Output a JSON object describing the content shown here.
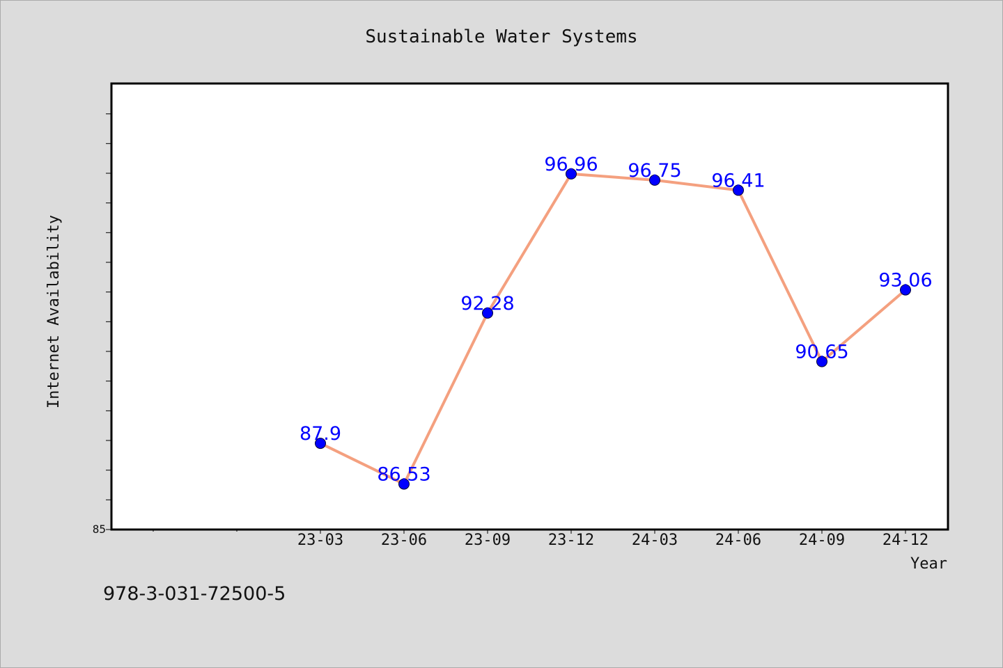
{
  "chart_data": {
    "type": "line",
    "title": "Sustainable Water Systems",
    "xlabel": "Year",
    "ylabel": "Internet Availability",
    "categories": [
      "23-03",
      "23-06",
      "23-09",
      "23-12",
      "24-03",
      "24-06",
      "24-09",
      "24-12"
    ],
    "values": [
      87.9,
      86.53,
      92.28,
      96.96,
      96.75,
      96.41,
      90.65,
      93.06
    ],
    "data_labels": [
      "87.9",
      "86.53",
      "92.28",
      "96.96",
      "96.75",
      "96.41",
      "90.65",
      "93.06"
    ],
    "ylim": [
      85,
      100
    ],
    "y_tick_labels": [
      "85"
    ],
    "grid": false,
    "legend": "none",
    "colors": {
      "line": "#f4a07f",
      "marker": "#0000ff",
      "data_label": "#0000ff",
      "plot_background": "#ffffff",
      "figure_background": "#dcdcdc"
    }
  },
  "footer": {
    "isbn": "978-3-031-72500-5"
  }
}
